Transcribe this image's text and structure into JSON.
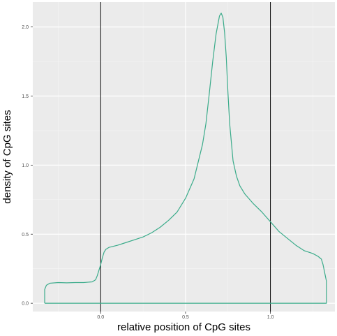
{
  "chart_data": {
    "type": "line",
    "xlabel": "relative position of CpG sites",
    "ylabel": "density of CpG sites",
    "xlim": [
      -0.4,
      1.38
    ],
    "ylim": [
      -0.06,
      2.18
    ],
    "x_ticks": [
      0.0,
      0.5,
      1.0
    ],
    "x_tick_labels": [
      "0.0",
      "0.5",
      "1.0"
    ],
    "x_minor_ticks": [
      -0.25,
      0.25,
      0.75,
      1.25
    ],
    "y_ticks": [
      0.0,
      0.5,
      1.0,
      1.5,
      2.0
    ],
    "y_tick_labels": [
      "0.0",
      "0.5",
      "1.0",
      "1.5",
      "2.0"
    ],
    "y_minor_ticks": [
      0.25,
      0.75,
      1.25,
      1.75
    ],
    "reference_lines_x": [
      0.0,
      1.0
    ],
    "grid": true,
    "background": "#ebebeb",
    "series": [
      {
        "color": "#3aab8a",
        "x": [
          -0.33,
          -0.33,
          -0.33,
          -0.32,
          -0.3,
          -0.25,
          -0.2,
          -0.15,
          -0.1,
          -0.05,
          -0.03,
          -0.02,
          -0.01,
          0.0,
          0.01,
          0.02,
          0.03,
          0.05,
          0.1,
          0.15,
          0.2,
          0.25,
          0.3,
          0.35,
          0.4,
          0.45,
          0.5,
          0.55,
          0.6,
          0.62,
          0.64,
          0.66,
          0.68,
          0.7,
          0.71,
          0.72,
          0.73,
          0.74,
          0.75,
          0.76,
          0.78,
          0.8,
          0.82,
          0.85,
          0.9,
          0.95,
          1.0,
          1.05,
          1.1,
          1.15,
          1.2,
          1.25,
          1.28,
          1.3,
          1.31,
          1.32,
          1.33,
          1.33,
          -0.33
        ],
        "y": [
          0.0,
          0.08,
          0.1,
          0.13,
          0.145,
          0.15,
          0.148,
          0.15,
          0.15,
          0.155,
          0.17,
          0.2,
          0.24,
          0.28,
          0.33,
          0.37,
          0.39,
          0.405,
          0.42,
          0.44,
          0.46,
          0.48,
          0.51,
          0.55,
          0.6,
          0.66,
          0.76,
          0.9,
          1.15,
          1.3,
          1.52,
          1.75,
          1.95,
          2.08,
          2.1,
          2.07,
          1.96,
          1.78,
          1.52,
          1.3,
          1.03,
          0.92,
          0.85,
          0.79,
          0.72,
          0.66,
          0.59,
          0.52,
          0.47,
          0.42,
          0.38,
          0.36,
          0.34,
          0.32,
          0.28,
          0.22,
          0.16,
          0.0,
          0.0
        ]
      }
    ]
  }
}
